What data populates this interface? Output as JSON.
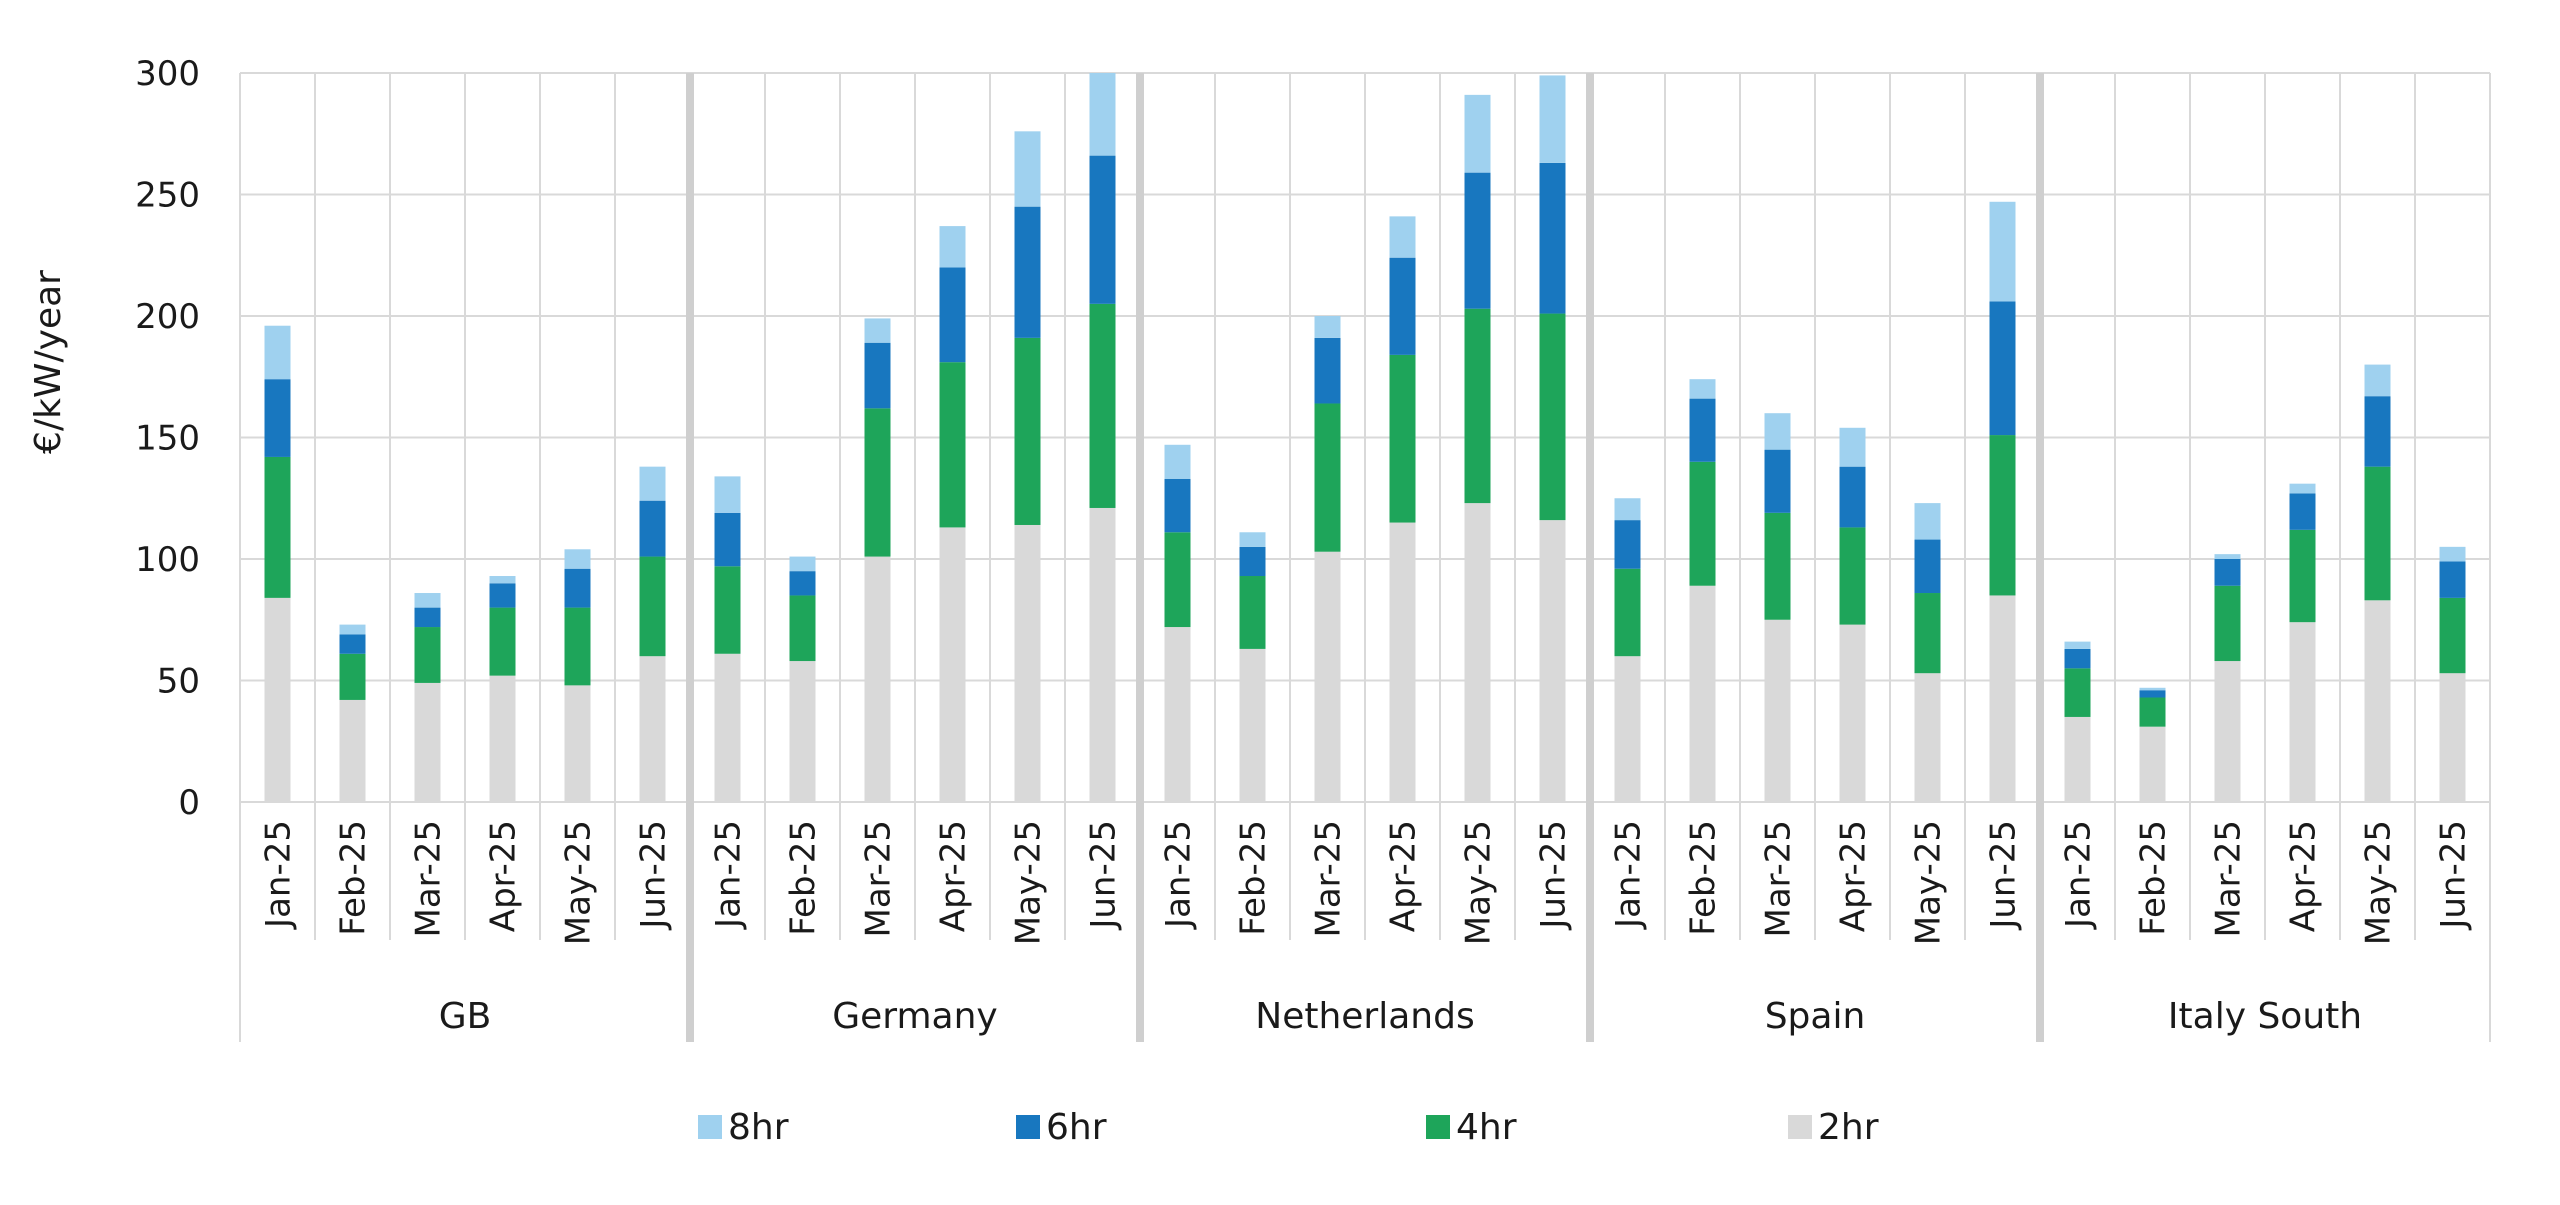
{
  "chart_data": {
    "type": "bar",
    "stacked": true,
    "ylabel": "€/kW/year",
    "ylim": [
      0,
      300
    ],
    "yticks": [
      0,
      50,
      100,
      150,
      200,
      250,
      300
    ],
    "grid": true,
    "legend_position": "bottom",
    "months": [
      "Jan-25",
      "Feb-25",
      "Mar-25",
      "Apr-25",
      "May-25",
      "Jun-25"
    ],
    "groups": [
      "GB",
      "Germany",
      "Netherlands",
      "Spain",
      "Italy South"
    ],
    "stack_order": [
      "2hr",
      "4hr",
      "6hr",
      "8hr"
    ],
    "legend_order": [
      "8hr",
      "6hr",
      "4hr",
      "2hr"
    ],
    "series": [
      {
        "name": "2hr",
        "color": "#d9d9d9",
        "values": [
          [
            84,
            42,
            49,
            52,
            48,
            60
          ],
          [
            61,
            58,
            101,
            113,
            114,
            121
          ],
          [
            72,
            63,
            103,
            115,
            123,
            116
          ],
          [
            60,
            89,
            75,
            73,
            53,
            85
          ],
          [
            35,
            31,
            58,
            74,
            83,
            53
          ]
        ]
      },
      {
        "name": "4hr",
        "color": "#1ea55a",
        "values": [
          [
            58,
            19,
            23,
            28,
            32,
            41
          ],
          [
            36,
            27,
            61,
            68,
            77,
            84
          ],
          [
            39,
            30,
            61,
            69,
            80,
            85
          ],
          [
            36,
            51,
            44,
            40,
            33,
            66
          ],
          [
            20,
            12,
            31,
            38,
            55,
            31
          ]
        ]
      },
      {
        "name": "6hr",
        "color": "#1877bf",
        "values": [
          [
            32,
            8,
            8,
            10,
            16,
            23
          ],
          [
            22,
            10,
            27,
            39,
            54,
            61
          ],
          [
            22,
            12,
            27,
            40,
            56,
            62
          ],
          [
            20,
            26,
            26,
            25,
            22,
            55
          ],
          [
            8,
            3,
            11,
            15,
            29,
            15
          ]
        ]
      },
      {
        "name": "8hr",
        "color": "#9fd1ef",
        "values": [
          [
            22,
            4,
            6,
            3,
            8,
            14
          ],
          [
            15,
            6,
            10,
            17,
            31,
            34
          ],
          [
            14,
            6,
            9,
            17,
            32,
            36
          ],
          [
            9,
            8,
            15,
            16,
            15,
            41
          ],
          [
            3,
            1,
            2,
            4,
            13,
            6
          ]
        ]
      }
    ]
  }
}
